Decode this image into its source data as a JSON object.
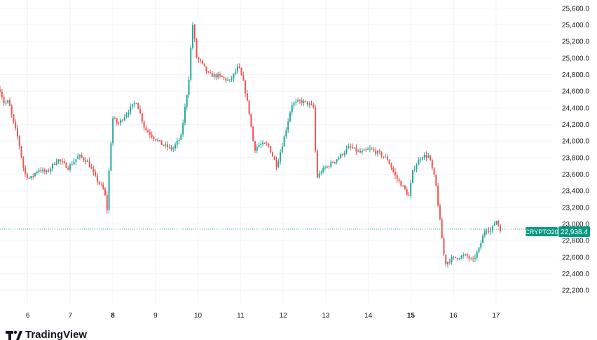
{
  "chart_data": {
    "type": "candlestick",
    "title": "",
    "xlabel": "",
    "ylabel": "",
    "ylim": [
      22050,
      25700
    ],
    "y_ticks": [
      22200,
      22400,
      22600,
      22800,
      23000,
      23200,
      23400,
      23600,
      23800,
      24000,
      24200,
      24400,
      24600,
      24800,
      25000,
      25200,
      25400,
      25600
    ],
    "y_tick_labels": [
      "22,200.0",
      "22,400.0",
      "22,600.0",
      "22,800.0",
      "23,000.0",
      "23,200.0",
      "23,400.0",
      "23,600.0",
      "23,800.0",
      "24,000.0",
      "24,200.0",
      "24,400.0",
      "24,600.0",
      "24,800.0",
      "25,000.0",
      "25,200.0",
      "25,400.0",
      "25,600.0"
    ],
    "x_ticks": [
      {
        "label": "6",
        "pos": 1.0,
        "bold": false
      },
      {
        "label": "7",
        "pos": 2.0,
        "bold": false
      },
      {
        "label": "8",
        "pos": 3.0,
        "bold": true
      },
      {
        "label": "9",
        "pos": 4.0,
        "bold": false
      },
      {
        "label": "10",
        "pos": 5.0,
        "bold": false
      },
      {
        "label": "11",
        "pos": 6.0,
        "bold": false
      },
      {
        "label": "12",
        "pos": 7.0,
        "bold": false
      },
      {
        "label": "13",
        "pos": 8.0,
        "bold": false
      },
      {
        "label": "14",
        "pos": 9.0,
        "bold": false
      },
      {
        "label": "15",
        "pos": 10.0,
        "bold": true
      },
      {
        "label": "16",
        "pos": 11.0,
        "bold": false
      },
      {
        "label": "17",
        "pos": 12.0,
        "bold": false
      }
    ],
    "xlim": [
      0.35,
      13.35
    ],
    "up_color": "#26a69a",
    "down_color": "#ef5350",
    "grid": true,
    "path": [
      [
        0.35,
        24620
      ],
      [
        0.45,
        24450
      ],
      [
        0.55,
        24480
      ],
      [
        0.65,
        24250
      ],
      [
        0.78,
        24020
      ],
      [
        0.92,
        23620
      ],
      [
        1.05,
        23540
      ],
      [
        1.25,
        23660
      ],
      [
        1.45,
        23620
      ],
      [
        1.7,
        23780
      ],
      [
        1.95,
        23680
      ],
      [
        2.2,
        23820
      ],
      [
        2.4,
        23760
      ],
      [
        2.6,
        23550
      ],
      [
        2.8,
        23400
      ],
      [
        2.87,
        23160
      ],
      [
        2.92,
        23750
      ],
      [
        3.0,
        24280
      ],
      [
        3.12,
        24200
      ],
      [
        3.3,
        24320
      ],
      [
        3.55,
        24480
      ],
      [
        3.75,
        24150
      ],
      [
        3.95,
        24050
      ],
      [
        4.15,
        23960
      ],
      [
        4.4,
        23900
      ],
      [
        4.6,
        24050
      ],
      [
        4.78,
        24720
      ],
      [
        4.87,
        25430
      ],
      [
        4.97,
        25000
      ],
      [
        5.05,
        24960
      ],
      [
        5.25,
        24800
      ],
      [
        5.5,
        24780
      ],
      [
        5.75,
        24720
      ],
      [
        5.95,
        24900
      ],
      [
        6.08,
        24680
      ],
      [
        6.2,
        24350
      ],
      [
        6.32,
        23900
      ],
      [
        6.45,
        23960
      ],
      [
        6.65,
        23950
      ],
      [
        6.85,
        23700
      ],
      [
        7.05,
        24100
      ],
      [
        7.2,
        24440
      ],
      [
        7.4,
        24480
      ],
      [
        7.55,
        24460
      ],
      [
        7.72,
        24400
      ],
      [
        7.78,
        23550
      ],
      [
        7.9,
        23640
      ],
      [
        8.1,
        23720
      ],
      [
        8.3,
        23800
      ],
      [
        8.55,
        23930
      ],
      [
        8.8,
        23860
      ],
      [
        9.05,
        23900
      ],
      [
        9.25,
        23850
      ],
      [
        9.45,
        23780
      ],
      [
        9.65,
        23560
      ],
      [
        9.85,
        23420
      ],
      [
        9.95,
        23330
      ],
      [
        10.05,
        23650
      ],
      [
        10.25,
        23820
      ],
      [
        10.42,
        23820
      ],
      [
        10.58,
        23500
      ],
      [
        10.7,
        22950
      ],
      [
        10.8,
        22520
      ],
      [
        10.95,
        22580
      ],
      [
        11.1,
        22600
      ],
      [
        11.3,
        22620
      ],
      [
        11.45,
        22550
      ],
      [
        11.6,
        22700
      ],
      [
        11.75,
        22950
      ],
      [
        11.88,
        22920
      ],
      [
        12.0,
        23050
      ],
      [
        12.1,
        22938
      ]
    ],
    "last_price": 22938.4,
    "last_price_label": "22,938.4",
    "symbol_label": "CRYPTO20"
  },
  "branding": {
    "logo_text": "TradingView",
    "logo_icon": "tradingview-logo-icon"
  }
}
